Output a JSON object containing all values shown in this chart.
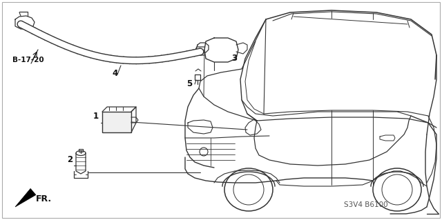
{
  "background_color": "#ffffff",
  "border_color": "#999999",
  "fig_width": 6.4,
  "fig_height": 3.19,
  "dpi": 100,
  "labels": {
    "b_ref": "B-17-20",
    "part1": "1",
    "part2": "2",
    "part3": "3",
    "part4": "4",
    "part5": "5",
    "fr_label": "FR.",
    "part_code": "S3V4 B6100"
  },
  "line_color": "#333333",
  "text_color": "#111111"
}
